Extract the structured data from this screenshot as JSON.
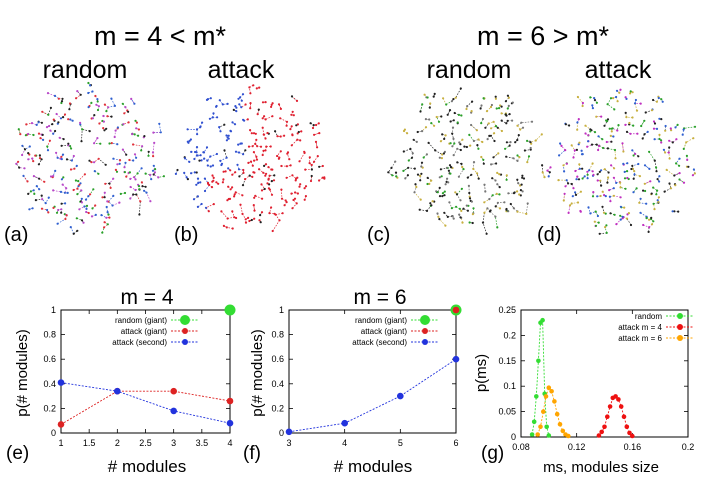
{
  "top": {
    "left_heading": "m = 4 < m*",
    "right_heading": "m = 6 > m*",
    "panels": [
      {
        "id": "a",
        "letter": "(a)",
        "label": "random",
        "colors": [
          "#222222",
          "#e0303a",
          "#3060d0",
          "#2aa02a",
          "#b848c8"
        ]
      },
      {
        "id": "b",
        "letter": "(b)",
        "label": "attack",
        "colors": [
          "#e02030",
          "#3050d0",
          "#222222"
        ]
      },
      {
        "id": "c",
        "letter": "(c)",
        "label": "random",
        "colors": [
          "#222222",
          "#222222",
          "#2aa02a",
          "#c8b040",
          "#777777"
        ]
      },
      {
        "id": "d",
        "letter": "(d)",
        "label": "attack",
        "colors": [
          "#222222",
          "#2aa02a",
          "#c030c0",
          "#3060d0",
          "#c8b040"
        ]
      }
    ]
  },
  "chart_data": [
    {
      "id": "e",
      "type": "line",
      "title": "m = 4",
      "panel_letter": "(e)",
      "xlabel": "# modules",
      "ylabel": "p(# modules)",
      "xlim": [
        1,
        4
      ],
      "ylim": [
        0,
        1
      ],
      "xticks": [
        "1",
        "1.5",
        "2",
        "2.5",
        "3",
        "3.5",
        "4"
      ],
      "yticks": [
        "0",
        "0.2",
        "0.4",
        "0.6",
        "0.8",
        "1"
      ],
      "series": [
        {
          "name": "random (giant)",
          "color": "#33dd33",
          "marker": "big",
          "x": [
            4
          ],
          "y": [
            1.0
          ]
        },
        {
          "name": "attack (giant)",
          "color": "#dd2222",
          "marker": "dot",
          "x": [
            1,
            2,
            3,
            4
          ],
          "y": [
            0.07,
            0.34,
            0.34,
            0.26
          ]
        },
        {
          "name": "attack (second)",
          "color": "#2233dd",
          "marker": "dot",
          "x": [
            1,
            2,
            3,
            4
          ],
          "y": [
            0.41,
            0.34,
            0.18,
            0.08
          ]
        }
      ]
    },
    {
      "id": "f",
      "type": "line",
      "title": "m = 6",
      "panel_letter": "(f)",
      "xlabel": "# modules",
      "ylabel": "p(# modules)",
      "xlim": [
        3,
        6
      ],
      "ylim": [
        0,
        1
      ],
      "xticks": [
        "3",
        "4",
        "5",
        "6"
      ],
      "yticks": [
        "0",
        "0.2",
        "0.4",
        "0.6",
        "0.8",
        "1"
      ],
      "series": [
        {
          "name": "random (giant)",
          "color": "#33dd33",
          "marker": "big",
          "x": [
            6
          ],
          "y": [
            1.0
          ]
        },
        {
          "name": "attack (giant)",
          "color": "#dd2222",
          "marker": "dot",
          "x": [
            6
          ],
          "y": [
            1.0
          ]
        },
        {
          "name": "attack (second)",
          "color": "#2233dd",
          "marker": "dot",
          "x": [
            3,
            4,
            5,
            6
          ],
          "y": [
            0.01,
            0.08,
            0.3,
            0.6
          ]
        }
      ]
    },
    {
      "id": "g",
      "type": "line",
      "title": "",
      "panel_letter": "(g)",
      "xlabel": "ms, modules size",
      "ylabel": "p(ms)",
      "xlim": [
        0.08,
        0.2
      ],
      "ylim": [
        0,
        0.25
      ],
      "xticks": [
        "0.08",
        "0.12",
        "0.16",
        "0.2"
      ],
      "yticks": [
        "0",
        "0.05",
        "0.1",
        "0.15",
        "0.2",
        "0.25"
      ],
      "series": [
        {
          "name": "random",
          "color": "#33dd33",
          "marker": "dot",
          "x": [
            0.088,
            0.0895,
            0.091,
            0.0925,
            0.094,
            0.0955,
            0.097,
            0.0985,
            0.1
          ],
          "y": [
            0.005,
            0.03,
            0.08,
            0.15,
            0.225,
            0.23,
            0.085,
            0.02,
            0.003
          ]
        },
        {
          "name": "attack m = 4",
          "color": "#ee1111",
          "marker": "dot",
          "x": [
            0.136,
            0.138,
            0.14,
            0.142,
            0.144,
            0.146,
            0.148,
            0.15,
            0.152,
            0.154,
            0.156,
            0.158,
            0.16
          ],
          "y": [
            0.003,
            0.01,
            0.02,
            0.04,
            0.06,
            0.077,
            0.08,
            0.074,
            0.06,
            0.04,
            0.02,
            0.008,
            0.002
          ]
        },
        {
          "name": "attack m = 6",
          "color": "#ffa500",
          "marker": "dot",
          "x": [
            0.092,
            0.094,
            0.096,
            0.098,
            0.1,
            0.102,
            0.104,
            0.106,
            0.108,
            0.11,
            0.112,
            0.114
          ],
          "y": [
            0.005,
            0.02,
            0.05,
            0.08,
            0.097,
            0.09,
            0.07,
            0.045,
            0.025,
            0.012,
            0.005,
            0.002
          ]
        }
      ]
    }
  ]
}
